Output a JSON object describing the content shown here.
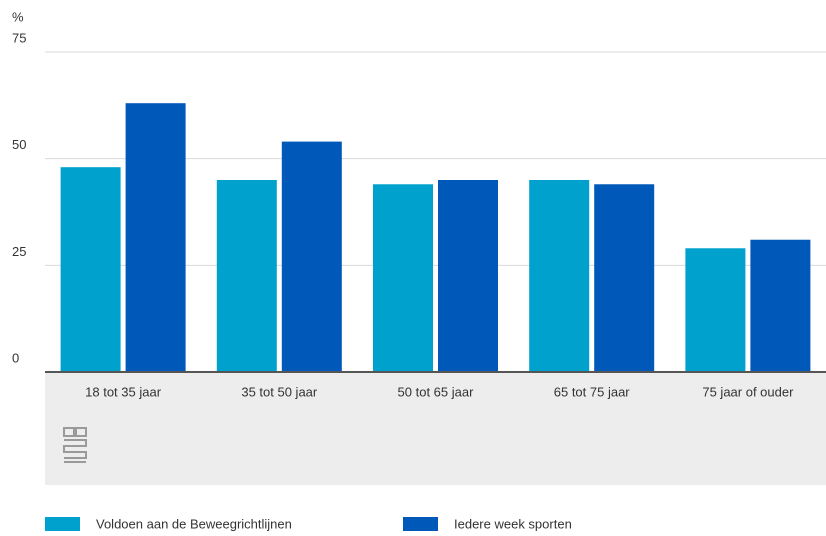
{
  "chart_data": {
    "type": "bar",
    "y_label": "%",
    "categories": [
      "18 tot 35 jaar",
      "35 tot 50 jaar",
      "50 tot 65 jaar",
      "65 tot 75 jaar",
      "75 jaar of ouder"
    ],
    "series": [
      {
        "name": "Voldoen aan de Beweegrichtlijnen",
        "color": "#00a1cd",
        "values": [
          48,
          45,
          44,
          45,
          29
        ]
      },
      {
        "name": "Iedere week sporten",
        "color": "#0058b8",
        "values": [
          63,
          54,
          45,
          44,
          31
        ]
      }
    ],
    "ylim": [
      0,
      75
    ],
    "yticks": [
      0,
      25,
      50,
      75
    ],
    "grid": true
  }
}
